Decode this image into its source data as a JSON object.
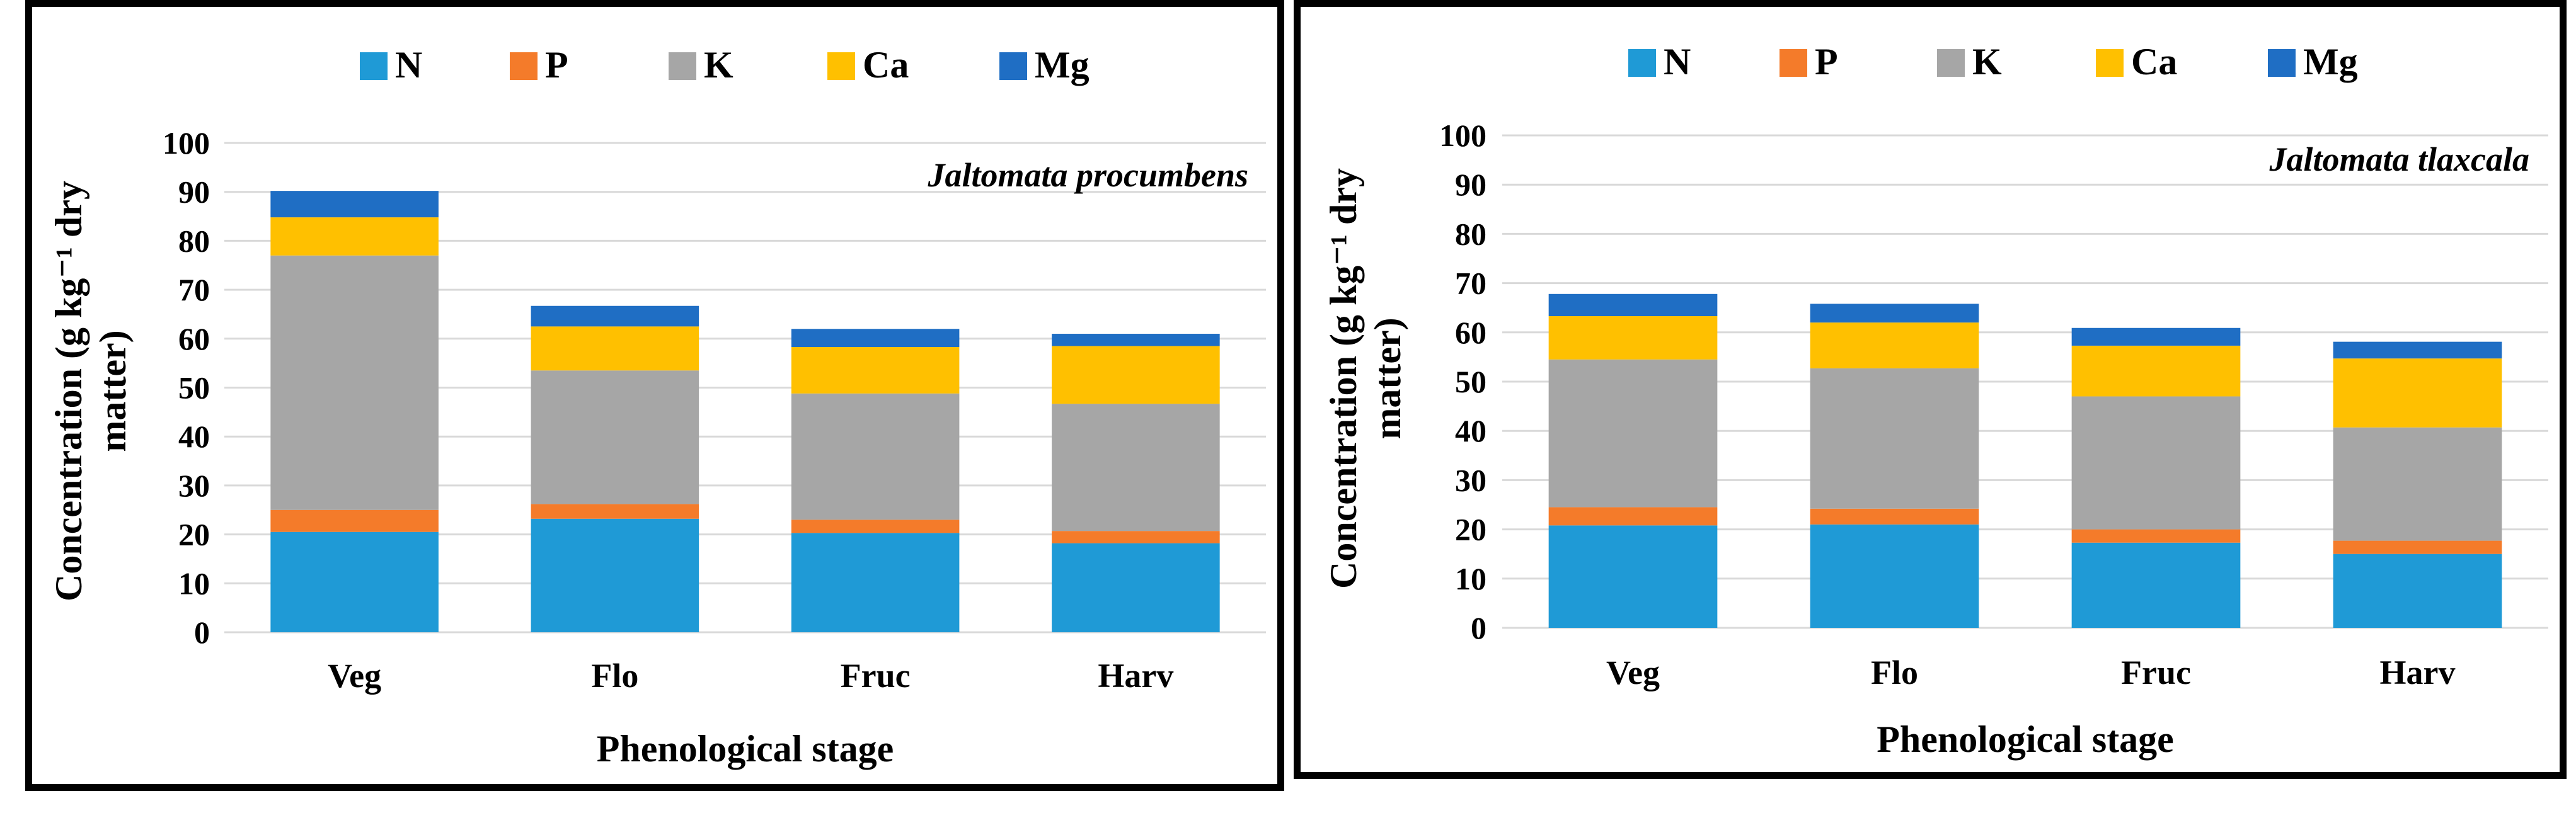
{
  "chart_data": [
    {
      "type": "bar",
      "stacked": true,
      "title": "Jaltomata procumbens",
      "xlabel": "Phenological stage",
      "ylabel_line1": "Concentration (g kg⁻¹ dry",
      "ylabel_line2": "matter)",
      "categories": [
        "Veg",
        "Flo",
        "Fruc",
        "Harv"
      ],
      "ylim": [
        0,
        100
      ],
      "yticks": [
        "0",
        "10",
        "20",
        "30",
        "40",
        "50",
        "60",
        "70",
        "80",
        "90",
        "100"
      ],
      "grid": true,
      "legend_position": "top",
      "series": [
        {
          "name": "N",
          "color": "#1f9ad6",
          "values": [
            20.5,
            23.2,
            20.3,
            18.2
          ]
        },
        {
          "name": "P",
          "color": "#f47b2a",
          "values": [
            4.5,
            3.0,
            2.7,
            2.5
          ]
        },
        {
          "name": "K",
          "color": "#a6a6a6",
          "values": [
            52.0,
            27.3,
            25.8,
            26.0
          ]
        },
        {
          "name": "Ca",
          "color": "#ffc000",
          "values": [
            7.8,
            9.0,
            9.5,
            11.8
          ]
        },
        {
          "name": "Mg",
          "color": "#1f6ec4",
          "values": [
            5.4,
            4.2,
            3.7,
            2.5
          ]
        }
      ]
    },
    {
      "type": "bar",
      "stacked": true,
      "title": "Jaltomata tlaxcala",
      "xlabel": "Phenological stage",
      "ylabel_line1": "Concentration (g kg⁻¹ dry",
      "ylabel_line2": "matter)",
      "categories": [
        "Veg",
        "Flo",
        "Fruc",
        "Harv"
      ],
      "ylim": [
        0,
        100
      ],
      "yticks": [
        "0",
        "10",
        "20",
        "30",
        "40",
        "50",
        "60",
        "70",
        "80",
        "90",
        "100"
      ],
      "grid": true,
      "legend_position": "top",
      "series": [
        {
          "name": "N",
          "color": "#1f9ad6",
          "values": [
            20.8,
            21.0,
            17.3,
            15.0
          ]
        },
        {
          "name": "P",
          "color": "#f47b2a",
          "values": [
            3.7,
            3.2,
            2.7,
            2.7
          ]
        },
        {
          "name": "K",
          "color": "#a6a6a6",
          "values": [
            30.0,
            28.5,
            27.0,
            23.0
          ]
        },
        {
          "name": "Ca",
          "color": "#ffc000",
          "values": [
            8.8,
            9.3,
            10.3,
            14.0
          ]
        },
        {
          "name": "Mg",
          "color": "#1f6ec4",
          "values": [
            4.5,
            3.8,
            3.6,
            3.4
          ]
        }
      ]
    }
  ]
}
